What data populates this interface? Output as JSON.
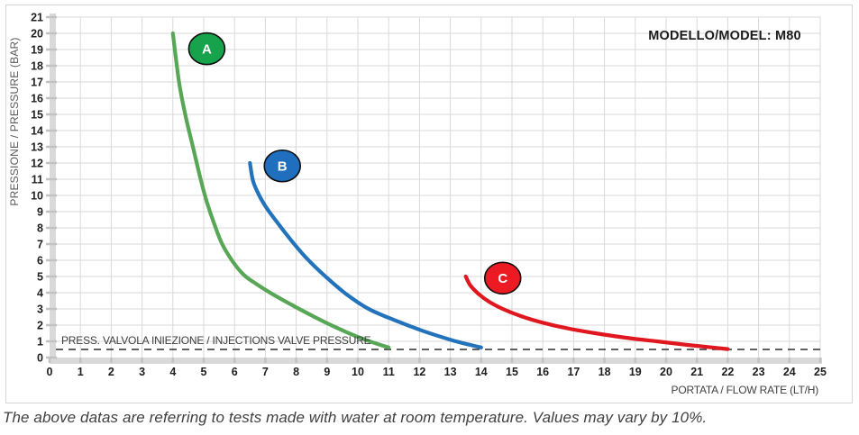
{
  "footnote": "The above datas are referring to tests made with water at room temperature. Values may vary by 10%.",
  "chart_data": {
    "type": "line",
    "title": "MODELLO/MODEL: M80",
    "xlabel": "PORTATA / FLOW RATE (LT/H)",
    "ylabel": "PRESSIONE / PRESSURE (BAR)",
    "xlim": [
      0,
      25
    ],
    "ylim": [
      0,
      21
    ],
    "x_ticks": [
      0,
      1,
      2,
      3,
      4,
      5,
      6,
      7,
      8,
      9,
      10,
      11,
      12,
      13,
      14,
      15,
      16,
      17,
      18,
      19,
      20,
      21,
      22,
      23,
      24,
      25
    ],
    "y_ticks": [
      0,
      1,
      2,
      3,
      4,
      5,
      6,
      7,
      8,
      9,
      10,
      11,
      12,
      13,
      14,
      15,
      16,
      17,
      18,
      19,
      20,
      21
    ],
    "grid": true,
    "grid_color": "#d9d9d9",
    "axis_color": "#d9d9d9",
    "tick_mark_color": "#c2c2c2",
    "frame_color": "#d6d6d6",
    "annotation_line": {
      "label": "PRESS. VALVOLA INIEZIONE / INJECTIONS VALVE PRESSURE",
      "y": 0.5,
      "style": "dashed",
      "color": "#2b2b2b"
    },
    "series": [
      {
        "name": "A",
        "line_color": "#57a757",
        "badge_color": "#17a34c",
        "badge_pos": [
          5.1,
          19.05
        ],
        "points": [
          [
            4.0,
            20.0
          ],
          [
            4.2,
            17.0
          ],
          [
            4.4,
            15.0
          ],
          [
            4.65,
            13.0
          ],
          [
            4.9,
            11.0
          ],
          [
            5.1,
            9.6
          ],
          [
            5.35,
            8.2
          ],
          [
            5.6,
            7.0
          ],
          [
            5.95,
            5.9
          ],
          [
            6.3,
            5.1
          ],
          [
            6.7,
            4.55
          ],
          [
            7.2,
            3.95
          ],
          [
            7.9,
            3.2
          ],
          [
            8.6,
            2.5
          ],
          [
            9.3,
            1.85
          ],
          [
            10.1,
            1.2
          ],
          [
            10.7,
            0.8
          ],
          [
            11.0,
            0.62
          ]
        ]
      },
      {
        "name": "B",
        "line_color": "#2273bb",
        "badge_color": "#1f6fbe",
        "badge_pos": [
          7.55,
          11.82
        ],
        "points": [
          [
            6.5,
            12.0
          ],
          [
            6.6,
            10.9
          ],
          [
            6.8,
            10.0
          ],
          [
            7.05,
            9.2
          ],
          [
            7.4,
            8.3
          ],
          [
            7.85,
            7.2
          ],
          [
            8.35,
            6.1
          ],
          [
            8.95,
            5.0
          ],
          [
            9.6,
            3.95
          ],
          [
            10.35,
            3.0
          ],
          [
            11.2,
            2.3
          ],
          [
            12.1,
            1.65
          ],
          [
            13.0,
            1.1
          ],
          [
            13.6,
            0.8
          ],
          [
            14.0,
            0.62
          ]
        ]
      },
      {
        "name": "C",
        "line_color": "#e0171e",
        "badge_color": "#ec1a22",
        "badge_pos": [
          14.7,
          4.9
        ],
        "points": [
          [
            13.5,
            5.0
          ],
          [
            13.65,
            4.45
          ],
          [
            13.9,
            3.95
          ],
          [
            14.25,
            3.45
          ],
          [
            14.7,
            3.0
          ],
          [
            15.3,
            2.55
          ],
          [
            16.0,
            2.15
          ],
          [
            16.8,
            1.8
          ],
          [
            17.7,
            1.5
          ],
          [
            18.7,
            1.22
          ],
          [
            19.7,
            1.0
          ],
          [
            20.7,
            0.78
          ],
          [
            21.5,
            0.62
          ],
          [
            22.0,
            0.52
          ]
        ]
      }
    ]
  }
}
